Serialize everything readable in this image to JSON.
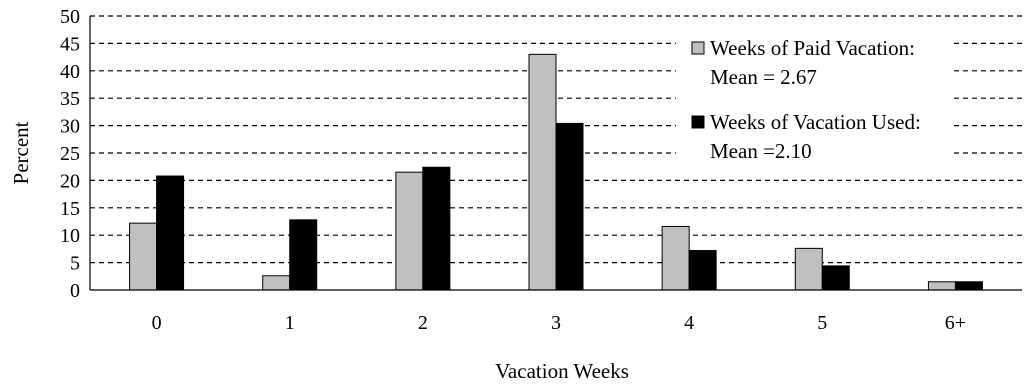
{
  "chart_data": {
    "type": "bar",
    "categories": [
      "0",
      "1",
      "2",
      "3",
      "4",
      "5",
      "6+"
    ],
    "series": [
      {
        "name": "Weeks of Paid Vacation:",
        "legend_line2": "Mean = 2.67",
        "color": "#c0c0c0",
        "values": [
          12.2,
          2.6,
          21.5,
          43.0,
          11.6,
          7.6,
          1.5
        ]
      },
      {
        "name": "Weeks of Vacation Used:",
        "legend_line2": "Mean =2.10",
        "color": "#000000",
        "values": [
          20.8,
          12.8,
          22.4,
          30.4,
          7.2,
          4.4,
          1.5
        ]
      }
    ],
    "xlabel": "Vacation Weeks",
    "ylabel": "Percent",
    "ylim": [
      0,
      50
    ],
    "yticks": [
      "0",
      "5",
      "10",
      "15",
      "20",
      "25",
      "30",
      "35",
      "40",
      "45",
      "50"
    ],
    "grid": true,
    "legend_position": "top-right"
  }
}
